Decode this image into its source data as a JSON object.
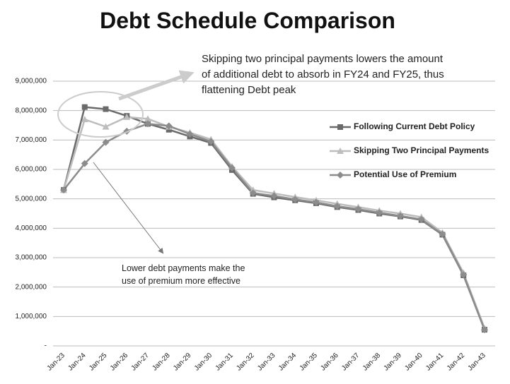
{
  "chart_data": {
    "type": "line",
    "title": "Debt Schedule Comparison",
    "categories": [
      "Jan-23",
      "Jan-24",
      "Jan-25",
      "Jan-26",
      "Jan-27",
      "Jan-28",
      "Jan-29",
      "Jan-30",
      "Jan-31",
      "Jan-32",
      "Jan-33",
      "Jan-34",
      "Jan-35",
      "Jan-36",
      "Jan-37",
      "Jan-38",
      "Jan-39",
      "Jan-40",
      "Jan-41",
      "Jan-42",
      "Jan-43"
    ],
    "series": [
      {
        "name": "Following Current Debt Policy",
        "color": "#6a6a6a",
        "marker": "square",
        "values": [
          5300000,
          8120000,
          8050000,
          7820000,
          7550000,
          7350000,
          7120000,
          6900000,
          5980000,
          5170000,
          5050000,
          4950000,
          4850000,
          4720000,
          4620000,
          4500000,
          4400000,
          4280000,
          3780000,
          2400000,
          550000
        ]
      },
      {
        "name": "Skipping Two Principal Payments",
        "color": "#bdbdbd",
        "marker": "triangle",
        "values": [
          5300000,
          7700000,
          7450000,
          7780000,
          7720000,
          7450000,
          7250000,
          7020000,
          6100000,
          5300000,
          5180000,
          5060000,
          4950000,
          4830000,
          4720000,
          4600000,
          4500000,
          4380000,
          3850000,
          2480000,
          600000
        ]
      },
      {
        "name": "Potential Use of Premium",
        "color": "#8c8c8c",
        "marker": "diamond",
        "values": [
          5300000,
          6200000,
          6920000,
          7300000,
          7550000,
          7480000,
          7200000,
          6950000,
          6050000,
          5200000,
          5100000,
          4980000,
          4880000,
          4750000,
          4650000,
          4530000,
          4420000,
          4300000,
          3800000,
          2420000,
          550000
        ]
      }
    ],
    "ylim": [
      0,
      9000000
    ],
    "yticks": [
      {
        "value": 0,
        "label": "-"
      },
      {
        "value": 1000000,
        "label": "1,000,000"
      },
      {
        "value": 2000000,
        "label": "2,000,000"
      },
      {
        "value": 3000000,
        "label": "3,000,000"
      },
      {
        "value": 4000000,
        "label": "4,000,000"
      },
      {
        "value": 5000000,
        "label": "5,000,000"
      },
      {
        "value": 6000000,
        "label": "6,000,000"
      },
      {
        "value": 7000000,
        "label": "7,000,000"
      },
      {
        "value": 8000000,
        "label": "8,000,000"
      },
      {
        "value": 9000000,
        "label": "9,000,000"
      }
    ],
    "grid": true,
    "legend": "right",
    "annotations": [
      [
        "Skipping two principal payments lowers the amount",
        "of additional debt to absorb in FY24 and FY25, thus",
        "flattening Debt peak"
      ],
      [
        "Lower debt payments make the",
        "use of premium more effective"
      ]
    ]
  }
}
